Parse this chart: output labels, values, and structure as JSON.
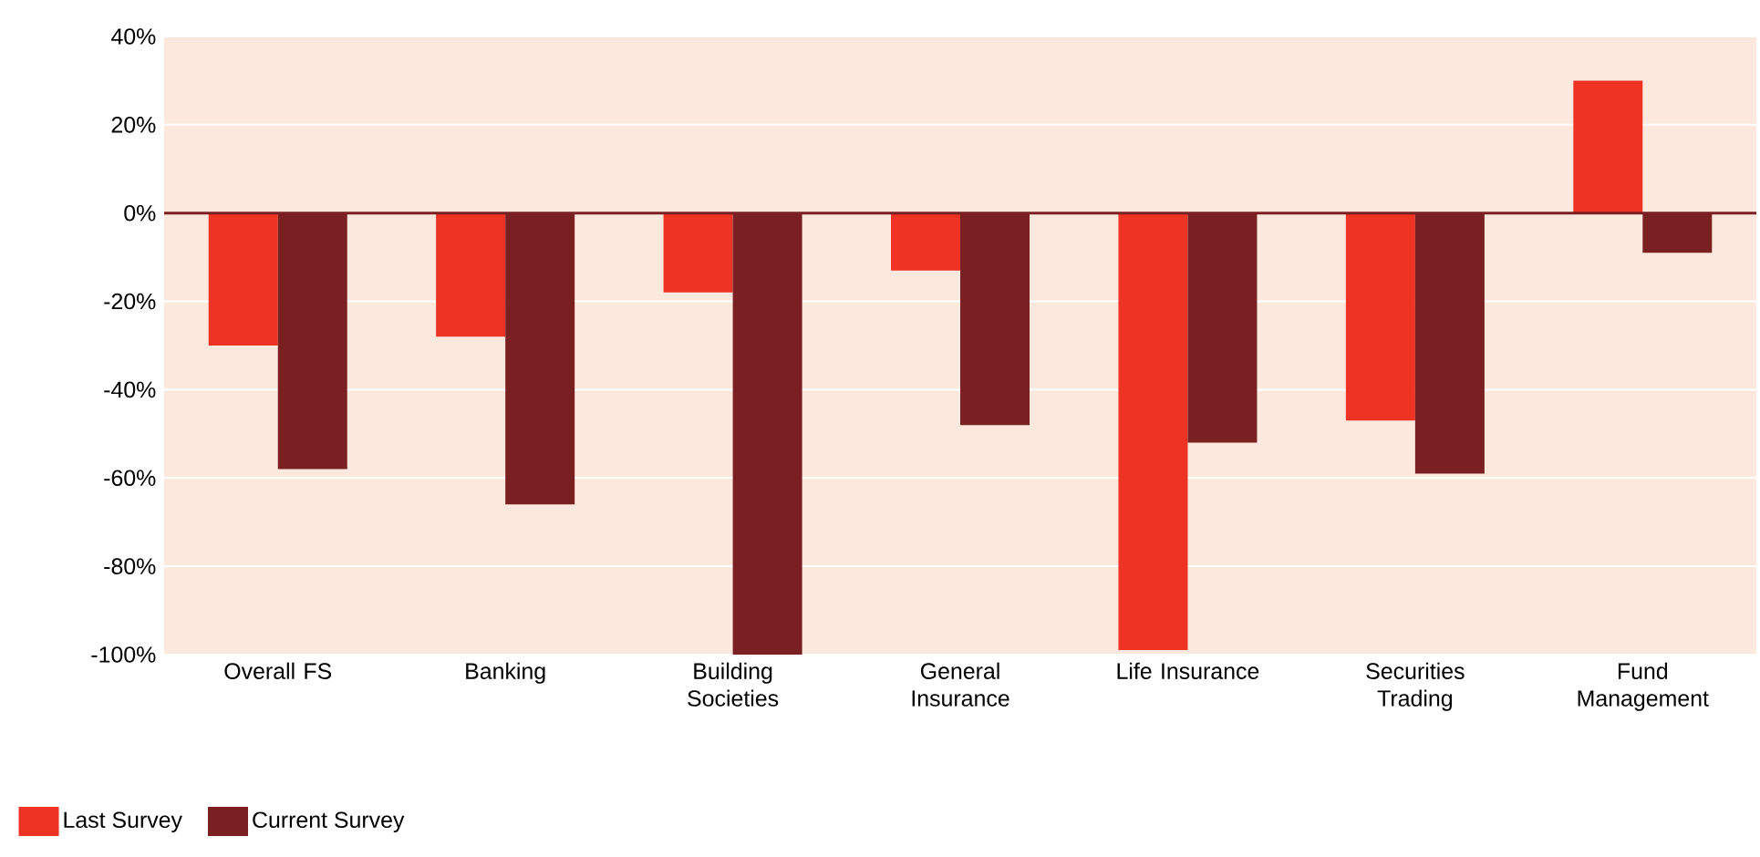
{
  "chart_data": {
    "type": "bar",
    "categories": [
      "Overall FS",
      "Banking",
      "Building Societies",
      "General Insurance",
      "Life Insurance",
      "Securities Trading",
      "Fund Management"
    ],
    "series": [
      {
        "name": "Last Survey",
        "color": "#ee3224",
        "values": [
          -30,
          -28,
          -18,
          -13,
          -99,
          -47,
          30
        ]
      },
      {
        "name": "Current Survey",
        "color": "#7a1f22",
        "values": [
          -58,
          -66,
          -100,
          -48,
          -52,
          -59,
          -9
        ]
      }
    ],
    "ylim": [
      -100,
      40
    ],
    "yticks": [
      {
        "value": -100,
        "label": "-100%"
      },
      {
        "value": -80,
        "label": "-80%"
      },
      {
        "value": -60,
        "label": "-60%"
      },
      {
        "value": -40,
        "label": "-40%"
      },
      {
        "value": -20,
        "label": "-20%"
      },
      {
        "value": 0,
        "label": "0%"
      },
      {
        "value": 20,
        "label": "20%"
      },
      {
        "value": 40,
        "label": "40%"
      }
    ],
    "ref_lines": [
      {
        "axis": "y",
        "value": 0,
        "color": "#7a1f22"
      }
    ],
    "grid": "y",
    "legend": "bottom left"
  }
}
